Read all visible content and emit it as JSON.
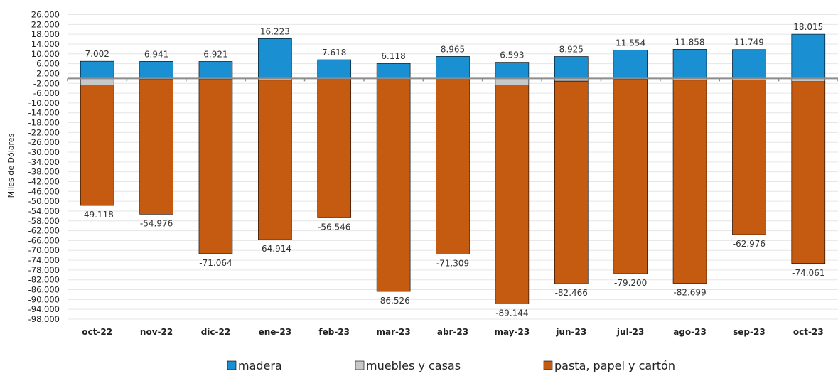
{
  "chart_data": {
    "type": "bar",
    "stacked": true,
    "categories": [
      "oct-22",
      "nov-22",
      "dic-22",
      "ene-23",
      "feb-23",
      "mar-23",
      "abr-23",
      "may-23",
      "jun-23",
      "jul-23",
      "ago-23",
      "sep-23",
      "oct-23"
    ],
    "series": [
      {
        "name": "madera",
        "color": "#1a8fd1",
        "values": [
          7002,
          6941,
          6921,
          16223,
          7618,
          6118,
          8965,
          6593,
          8925,
          11554,
          11858,
          11749,
          18015
        ]
      },
      {
        "name": "muebles y casas",
        "color": "#c8c8c8",
        "values": [
          -2600,
          -300,
          -300,
          -700,
          -200,
          -200,
          -200,
          -2600,
          -1100,
          -300,
          -700,
          -600,
          -1300
        ]
      },
      {
        "name": "pasta, papel y cartón",
        "color": "#c55a11",
        "values": [
          -49118,
          -54976,
          -71064,
          -64914,
          -56546,
          -86526,
          -71309,
          -89144,
          -82466,
          -79200,
          -82699,
          -62976,
          -74061
        ]
      }
    ],
    "labels_top": [
      "7.002",
      "6.941",
      "6.921",
      "16.223",
      "7.618",
      "6.118",
      "8.965",
      "6.593",
      "8.925",
      "11.554",
      "11.858",
      "11.749",
      "18.015"
    ],
    "labels_bottom": [
      "-49.118",
      "-54.976",
      "-71.064",
      "-64.914",
      "-56.546",
      "-86.526",
      "-71.309",
      "-89.144",
      "-82.466",
      "-79.200",
      "-82.699",
      "-62.976",
      "-74.061"
    ],
    "ylabel": "Miles de Dólares",
    "ylim": [
      -98000,
      26000
    ],
    "ytick_step": 4000,
    "ytick_labels": [
      "26.000",
      "22.000",
      "18.000",
      "14.000",
      "10.000",
      "6.000",
      "2.000",
      "-2.000",
      "-6.000",
      "-10.000",
      "-14.000",
      "-18.000",
      "-22.000",
      "-26.000",
      "-30.000",
      "-34.000",
      "-38.000",
      "-42.000",
      "-46.000",
      "-50.000",
      "-54.000",
      "-58.000",
      "-62.000",
      "-66.000",
      "-70.000",
      "-74.000",
      "-78.000",
      "-82.000",
      "-86.000",
      "-90.000",
      "-94.000",
      "-98.000"
    ],
    "grid": true,
    "legend_position": "bottom"
  }
}
